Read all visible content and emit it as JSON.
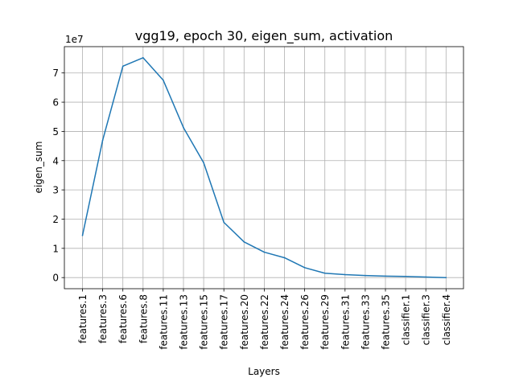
{
  "chart_data": {
    "type": "line",
    "title": "vgg19, epoch 30, eigen_sum, activation",
    "xlabel": "Layers",
    "ylabel": "eigen_sum",
    "y_multiplier_label": "1e7",
    "grid": true,
    "ylim": [
      -0.38,
      7.9
    ],
    "yticks": [
      0,
      1,
      2,
      3,
      4,
      5,
      6,
      7
    ],
    "ytick_labels": [
      "0",
      "1",
      "2",
      "3",
      "4",
      "5",
      "6",
      "7"
    ],
    "categories": [
      "features.1",
      "features.3",
      "features.6",
      "features.8",
      "features.11",
      "features.13",
      "features.15",
      "features.17",
      "features.20",
      "features.22",
      "features.24",
      "features.26",
      "features.29",
      "features.31",
      "features.33",
      "features.35",
      "classifier.1",
      "classifier.3",
      "classifier.4"
    ],
    "series": [
      {
        "color": "#1f77b4",
        "values": [
          1.44,
          4.7,
          7.23,
          7.52,
          6.75,
          5.13,
          3.93,
          1.89,
          1.22,
          0.87,
          0.68,
          0.34,
          0.15,
          0.1,
          0.07,
          0.05,
          0.04,
          0.02,
          0.0
        ]
      }
    ]
  }
}
